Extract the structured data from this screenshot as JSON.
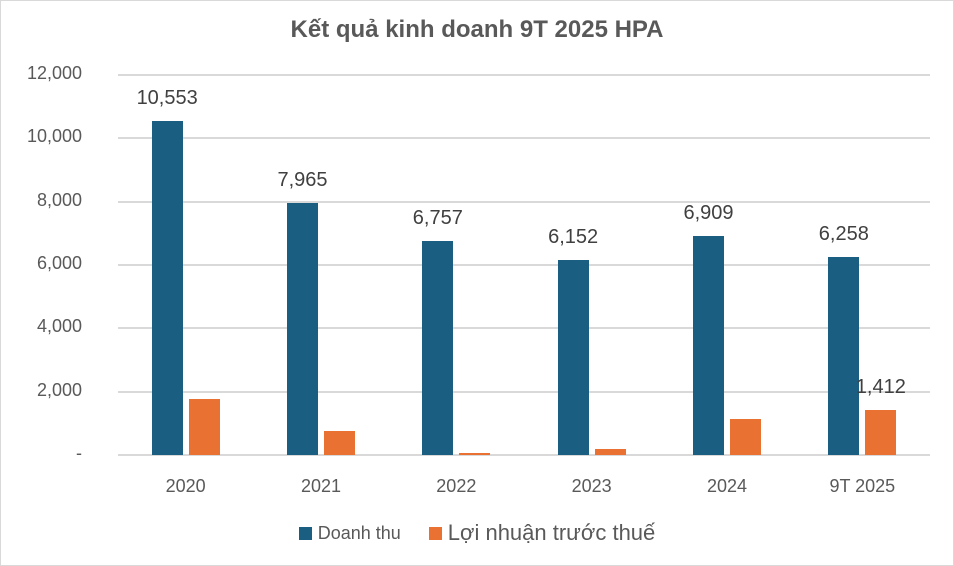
{
  "chart_data": {
    "type": "bar",
    "title": "Kết quả kinh doanh 9T 2025 HPA",
    "xlabel": "",
    "ylabel": "",
    "ylim": [
      0,
      12000
    ],
    "yticks": [
      "-",
      "2,000",
      "4,000",
      "6,000",
      "8,000",
      "10,000",
      "12,000"
    ],
    "grid": true,
    "legend_position": "bottom",
    "categories": [
      "2020",
      "2021",
      "2022",
      "2023",
      "2024",
      "9T 2025"
    ],
    "series": [
      {
        "name": "Doanh thu",
        "color": "#1a5e82",
        "values": [
          10553,
          7965,
          6757,
          6152,
          6909,
          6258
        ],
        "labels": [
          "10,553",
          "7,965",
          "6,757",
          "6,152",
          "6,909",
          "6,258"
        ]
      },
      {
        "name": "Lợi nhuận trước thuế",
        "color": "#e97132",
        "values": [
          1780,
          750,
          50,
          200,
          1150,
          1412
        ],
        "labels": [
          "",
          "",
          "",
          "",
          "",
          "1,412"
        ]
      }
    ]
  }
}
